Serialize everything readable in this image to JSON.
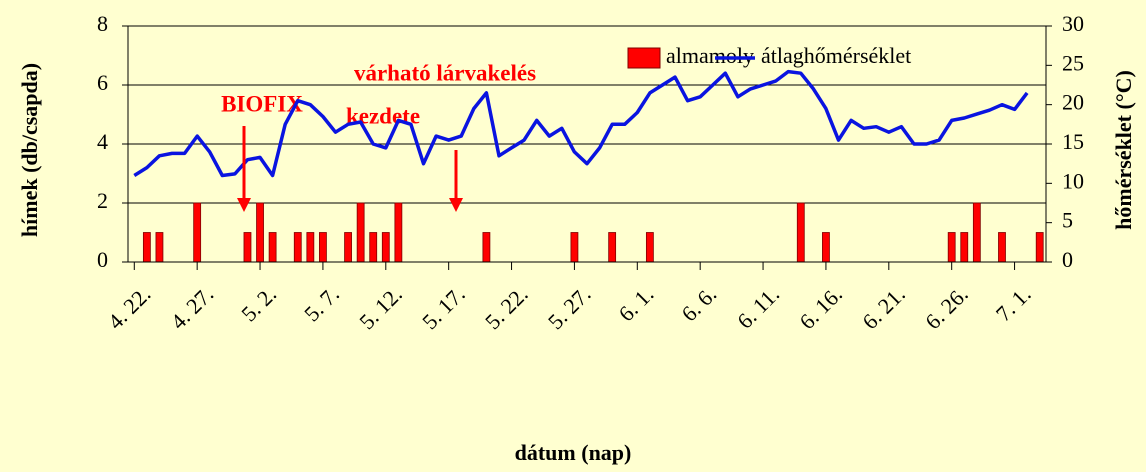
{
  "chart_data": {
    "type": "bar",
    "y_label": "hímek (db/csapda)",
    "y2_label": "hőmérséklet (°C)",
    "x_label": "dátum (nap)",
    "annotations": [
      "BIOFIX",
      "várható lárvakelés",
      "kezdete"
    ],
    "categories": [
      "4. 22.",
      null,
      null,
      null,
      null,
      "4. 27.",
      null,
      null,
      null,
      null,
      "5. 2.",
      null,
      null,
      null,
      null,
      "5. 7.",
      null,
      null,
      null,
      null,
      "5. 12.",
      null,
      null,
      null,
      null,
      "5. 17.",
      null,
      null,
      null,
      null,
      "5. 22.",
      null,
      null,
      null,
      null,
      "5. 27.",
      null,
      null,
      null,
      null,
      "6. 1.",
      null,
      null,
      null,
      null,
      "6. 6.",
      null,
      null,
      null,
      null,
      "6. 11.",
      null,
      null,
      null,
      null,
      "6. 16.",
      null,
      null,
      null,
      null,
      "6. 21.",
      null,
      null,
      null,
      null,
      "6. 26.",
      null,
      null,
      null,
      null,
      "7. 1.",
      null,
      null
    ],
    "series": [
      {
        "name": "almamoly",
        "type": "bar",
        "color": "#ff0000",
        "values": [
          0,
          1,
          1,
          0,
          0,
          2,
          0,
          0,
          0,
          1,
          2,
          1,
          0,
          1,
          1,
          1,
          0,
          1,
          2,
          1,
          1,
          2,
          0,
          0,
          0,
          0,
          0,
          0,
          1,
          0,
          0,
          0,
          0,
          0,
          0,
          1,
          0,
          0,
          1,
          0,
          0,
          1,
          0,
          0,
          0,
          0,
          0,
          0,
          0,
          0,
          0,
          0,
          0,
          2,
          0,
          1,
          0,
          0,
          0,
          0,
          0,
          0,
          0,
          0,
          0,
          1,
          1,
          2,
          0,
          1,
          0,
          0,
          1
        ]
      },
      {
        "name": "átlaghőmérséklet",
        "type": "line",
        "axis": "y2",
        "color": "#0a14e0",
        "values": [
          11,
          12,
          13.5,
          13.8,
          13.8,
          16,
          14,
          11,
          11.2,
          13,
          13.3,
          11,
          17.5,
          20.5,
          20,
          18.5,
          16.5,
          17.5,
          17.8,
          15,
          14.5,
          18,
          17.5,
          12.5,
          16,
          15.5,
          16,
          19.5,
          21.5,
          13.5,
          14.5,
          15.5,
          18,
          16,
          17,
          14,
          12.5,
          14.5,
          17.5,
          17.5,
          19,
          21.5,
          22.5,
          23.5,
          20.5,
          21,
          22.5,
          24,
          21,
          22,
          22.5,
          23,
          24.2,
          24,
          22,
          19.5,
          15.5,
          18,
          17,
          17.2,
          16.5,
          17.2,
          15,
          15,
          15.5,
          18,
          18.3,
          18.8,
          19.3,
          20,
          19.4,
          21.5,
          null
        ]
      }
    ],
    "ylim": [
      0,
      8
    ],
    "yticks": [
      0,
      2,
      4,
      6,
      8
    ],
    "y2lim": [
      0,
      30
    ],
    "y2ticks": [
      0,
      5,
      10,
      15,
      20,
      25,
      30
    ],
    "grid": true
  }
}
